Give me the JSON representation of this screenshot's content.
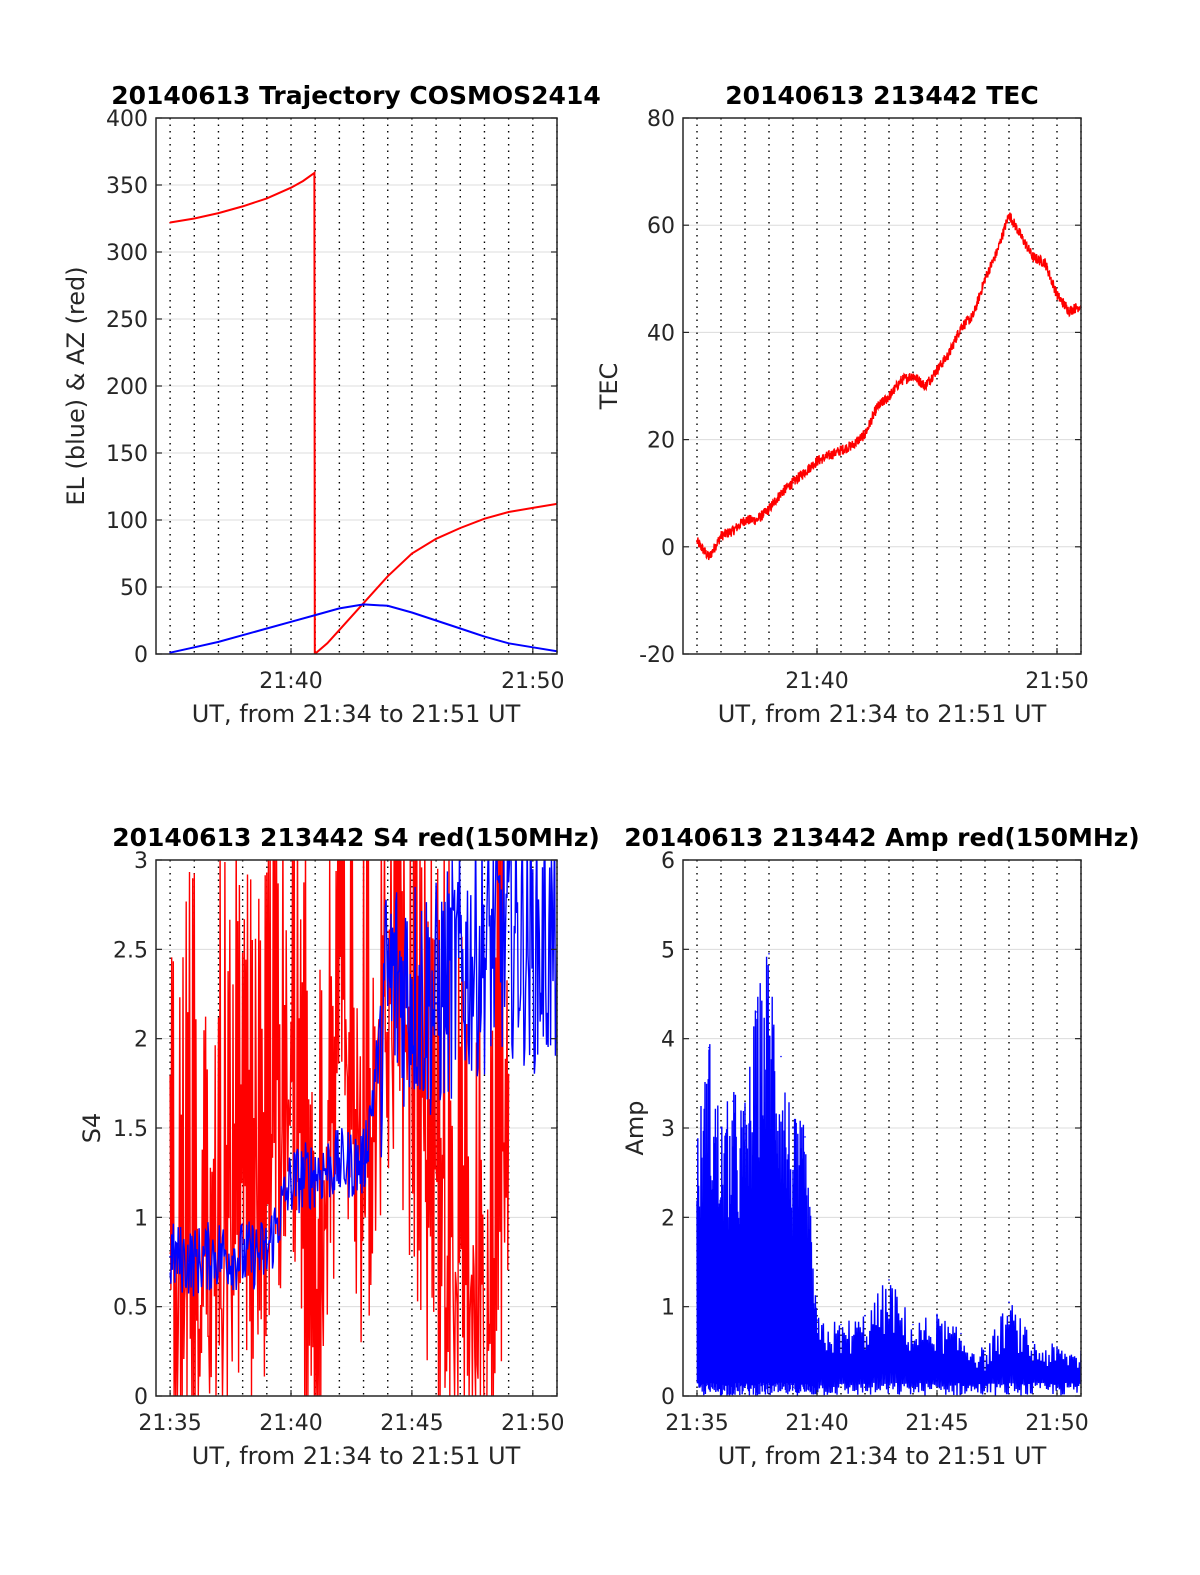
{
  "colors": {
    "red": "#ff0000",
    "blue": "#0000ff",
    "axis": "#262626",
    "grid": "#dcdcdc"
  },
  "chart_data": [
    {
      "id": "trajectory",
      "type": "line",
      "title": "20140613 Trajectory COSMOS2414",
      "xlabel": "UT, from 21:34 to 21:51 UT",
      "ylabel": "EL (blue) & AZ (red)",
      "xlim": [
        "21:34:25",
        "21:51:00"
      ],
      "ylim": [
        0,
        400
      ],
      "yticks": [
        "0",
        "50",
        "100",
        "150",
        "200",
        "250",
        "300",
        "350",
        "400"
      ],
      "xticks": [
        {
          "t": "21:40",
          "label": "21:40"
        },
        {
          "t": "21:50",
          "label": "21:50"
        }
      ],
      "grid": true,
      "series": [
        {
          "color": "red",
          "x": [
            "21:35:00",
            "21:36:00",
            "21:37:00",
            "21:38:00",
            "21:39:00",
            "21:40:00",
            "21:40:30",
            "21:40:58",
            "21:40:59",
            "21:41:30",
            "21:42:00",
            "21:43:00",
            "21:44:00",
            "21:45:00",
            "21:46:00",
            "21:47:00",
            "21:48:00",
            "21:49:00",
            "21:50:00",
            "21:51:00"
          ],
          "y": [
            322,
            325,
            329,
            334,
            340,
            348,
            353,
            359,
            0,
            8,
            18,
            38,
            58,
            75,
            86,
            94,
            101,
            106,
            109,
            112
          ]
        },
        {
          "color": "blue",
          "x": [
            "21:35:00",
            "21:36:00",
            "21:37:00",
            "21:38:00",
            "21:39:00",
            "21:40:00",
            "21:41:00",
            "21:42:00",
            "21:43:00",
            "21:44:00",
            "21:45:00",
            "21:46:00",
            "21:47:00",
            "21:48:00",
            "21:49:00",
            "21:50:00",
            "21:51:00"
          ],
          "y": [
            1,
            5,
            9,
            14,
            19,
            24,
            29,
            34,
            37,
            36,
            31,
            25,
            19,
            13,
            8,
            5,
            2
          ]
        }
      ]
    },
    {
      "id": "tec",
      "type": "line",
      "title": "20140613 213442 TEC",
      "xlabel": "UT, from 21:34 to 21:51 UT",
      "ylabel": "TEC",
      "xlim": [
        "21:34:25",
        "21:51:00"
      ],
      "ylim": [
        -20,
        80
      ],
      "yticks": [
        "-20",
        "0",
        "20",
        "40",
        "60",
        "80"
      ],
      "xticks": [
        {
          "t": "21:40",
          "label": "21:40"
        },
        {
          "t": "21:50",
          "label": "21:50"
        }
      ],
      "grid": true,
      "series": [
        {
          "color": "red",
          "x": [
            "21:35:00",
            "21:35:30",
            "21:36:00",
            "21:36:30",
            "21:37:00",
            "21:37:30",
            "21:38:00",
            "21:38:30",
            "21:39:00",
            "21:39:30",
            "21:40:00",
            "21:40:30",
            "21:41:00",
            "21:41:30",
            "21:42:00",
            "21:42:30",
            "21:43:00",
            "21:43:30",
            "21:44:00",
            "21:44:30",
            "21:45:00",
            "21:45:30",
            "21:46:00",
            "21:46:30",
            "21:47:00",
            "21:47:30",
            "21:48:00",
            "21:48:30",
            "21:49:00",
            "21:49:30",
            "21:50:00",
            "21:50:30",
            "21:51:00"
          ],
          "y": [
            1,
            -2,
            2,
            3,
            5,
            5,
            7,
            10,
            12,
            14,
            16,
            17,
            18,
            19,
            21,
            26,
            28,
            31,
            32,
            30,
            33,
            36,
            41,
            43,
            50,
            55,
            62,
            58,
            54,
            53,
            47,
            44,
            45
          ]
        }
      ]
    },
    {
      "id": "s4",
      "type": "line",
      "title": "20140613 213442 S4 red(150MHz)",
      "xlabel": "UT, from 21:34 to 21:51 UT",
      "ylabel": "S4",
      "xlim": [
        "21:34:25",
        "21:51:00"
      ],
      "ylim": [
        0,
        3
      ],
      "yticks": [
        "0",
        "0.5",
        "1",
        "1.5",
        "2",
        "2.5",
        "3"
      ],
      "xticks": [
        {
          "t": "21:35",
          "label": "21:35"
        },
        {
          "t": "21:40",
          "label": "21:40"
        },
        {
          "t": "21:45",
          "label": "21:45"
        },
        {
          "t": "21:50",
          "label": "21:50"
        }
      ],
      "grid": true,
      "series": [
        {
          "color": "red",
          "x": [
            "21:35:00",
            "21:36:00",
            "21:37:00",
            "21:38:00",
            "21:39:00",
            "21:40:00",
            "21:41:00",
            "21:42:00",
            "21:43:00",
            "21:44:00",
            "21:45:00",
            "21:46:00",
            "21:47:00",
            "21:48:00",
            "21:49:00"
          ],
          "y": [
            0.8,
            0.9,
            1.0,
            1.2,
            1.5,
            2.2,
            0.5,
            2.5,
            1.5,
            2.6,
            2.2,
            1.4,
            0.9,
            0.6,
            1.8
          ]
        },
        {
          "color": "blue",
          "x": [
            "21:35:00",
            "21:36:00",
            "21:37:00",
            "21:38:00",
            "21:39:00",
            "21:40:00",
            "21:41:00",
            "21:42:00",
            "21:43:00",
            "21:44:00",
            "21:45:00",
            "21:46:00",
            "21:47:00",
            "21:48:00",
            "21:49:00",
            "21:50:00",
            "21:51:00"
          ],
          "y": [
            0.78,
            0.75,
            0.8,
            0.78,
            0.8,
            1.2,
            1.25,
            1.3,
            1.3,
            2.3,
            2.3,
            2.2,
            2.4,
            2.5,
            2.6,
            2.5,
            2.5
          ]
        }
      ]
    },
    {
      "id": "amp",
      "type": "line",
      "title": "20140613 213442 Amp red(150MHz)",
      "xlabel": "UT, from 21:34 to 21:51 UT",
      "ylabel": "Amp",
      "xlim": [
        "21:34:25",
        "21:51:00"
      ],
      "ylim": [
        0,
        6
      ],
      "yticks": [
        "0",
        "1",
        "2",
        "3",
        "4",
        "5",
        "6"
      ],
      "xticks": [
        {
          "t": "21:35",
          "label": "21:35"
        },
        {
          "t": "21:40",
          "label": "21:40"
        },
        {
          "t": "21:45",
          "label": "21:45"
        },
        {
          "t": "21:50",
          "label": "21:50"
        }
      ],
      "grid": true,
      "series": [
        {
          "color": "blue",
          "x": [
            "21:35:00",
            "21:35:30",
            "21:36:00",
            "21:36:30",
            "21:37:00",
            "21:37:30",
            "21:38:00",
            "21:38:30",
            "21:39:00",
            "21:39:30",
            "21:40:00",
            "21:41:00",
            "21:42:00",
            "21:43:00",
            "21:44:00",
            "21:45:00",
            "21:46:00",
            "21:47:00",
            "21:48:00",
            "21:49:00",
            "21:50:00",
            "21:51:00"
          ],
          "y": [
            2.8,
            3.9,
            3.0,
            3.3,
            3.2,
            4.3,
            4.95,
            3.8,
            3.0,
            2.9,
            0.85,
            0.8,
            0.9,
            1.3,
            0.8,
            0.9,
            0.7,
            0.5,
            1.05,
            0.6,
            0.55,
            0.5
          ]
        }
      ]
    }
  ]
}
